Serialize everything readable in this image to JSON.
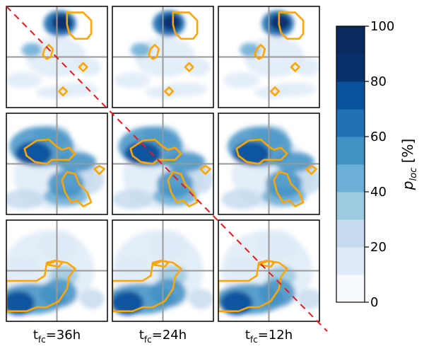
{
  "chart_data": {
    "type": "heatmap",
    "description_grid": "3x3 grid of filled contour panels; columns correspond to forecast lead times",
    "columns": [
      {
        "label_main": "t",
        "label_sub": "fc",
        "label_rest": "=36h"
      },
      {
        "label_main": "t",
        "label_sub": "fc",
        "label_rest": "=24h"
      },
      {
        "label_main": "t",
        "label_sub": "fc",
        "label_rest": "=12h"
      }
    ],
    "colorbar": {
      "label_main": "p",
      "label_sub": "loc",
      "label_unit": " [%]",
      "range": [
        0,
        100
      ],
      "ticks": [
        "0",
        "20",
        "40",
        "60",
        "80",
        "100"
      ],
      "levels": [
        0,
        10,
        20,
        30,
        40,
        50,
        60,
        70,
        80,
        90,
        100
      ],
      "colors": [
        "#f7fbff",
        "#deebf7",
        "#c6dbef",
        "#9ecae1",
        "#6baed6",
        "#4292c6",
        "#2171b5",
        "#08519c",
        "#08306b",
        "#082a5c"
      ]
    },
    "contour_color": "#ffa500",
    "diagonal_color": "#e41a1c",
    "crosshair_color": "#999999"
  }
}
